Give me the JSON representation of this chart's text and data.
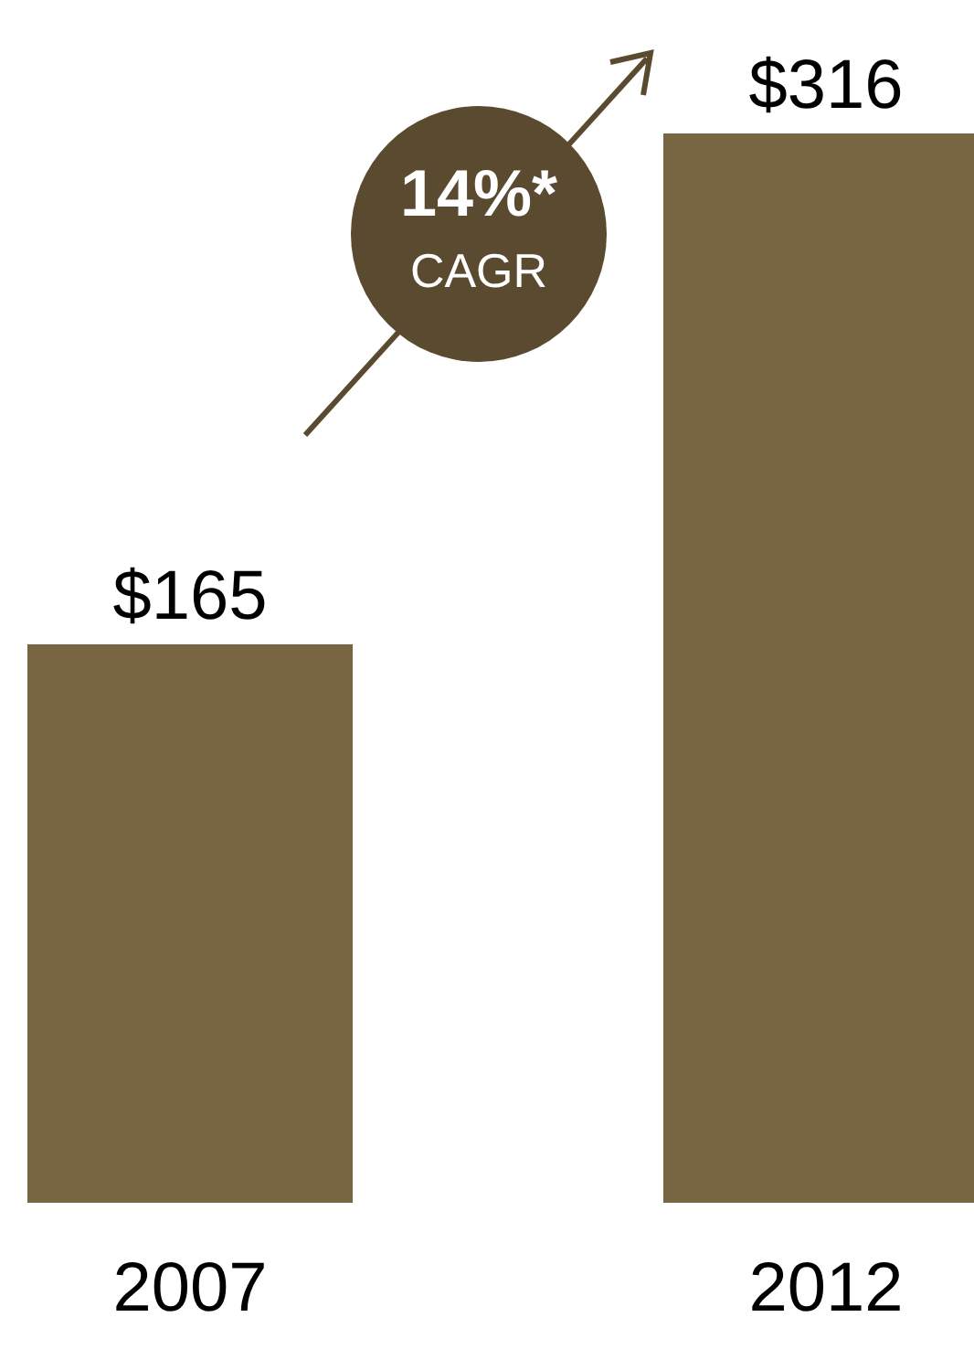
{
  "chart_data": {
    "type": "bar",
    "categories": [
      "2007",
      "2012"
    ],
    "values": [
      165,
      316
    ],
    "color": "#786542",
    "value_labels": [
      "$165",
      "$316"
    ],
    "annotations": [
      "14%*",
      "CAGR"
    ]
  }
}
